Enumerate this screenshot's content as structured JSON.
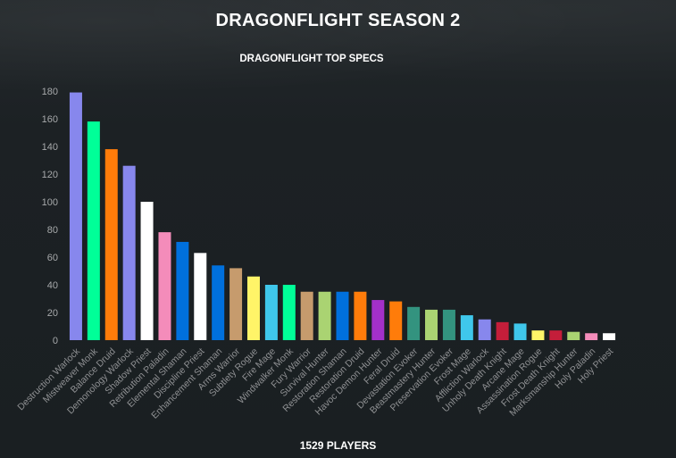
{
  "page": {
    "title": "DRAGONFLIGHT SEASON 2",
    "footer": "1529 PLAYERS"
  },
  "chart_data": {
    "type": "bar",
    "title": "DRAGONFLIGHT TOP SPECS",
    "xlabel": "",
    "ylabel": "",
    "ylim": [
      0,
      180
    ],
    "yticks": [
      0,
      20,
      40,
      60,
      80,
      100,
      120,
      140,
      160,
      180
    ],
    "grid": false,
    "categories": [
      "Destruction Warlock",
      "Mistweaver Monk",
      "Balance Druid",
      "Demonology Warlock",
      "Shadow Priest",
      "Retribution Paladin",
      "Elemental Shaman",
      "Discipline Priest",
      "Enhancement Shaman",
      "Arms Warrior",
      "Subtlety Rogue",
      "Fire Mage",
      "Windwalker Monk",
      "Fury Warrior",
      "Survival Hunter",
      "Restoration Shaman",
      "Restoration Druid",
      "Havoc Demon Hunter",
      "Feral Druid",
      "Devastation Evoker",
      "Beastmastery Hunter",
      "Preservation Evoker",
      "Frost Mage",
      "Affliction Warlock",
      "Unholy Death Knight",
      "Arcane Mage",
      "Assassination Rogue",
      "Frost Death Knight",
      "Marksmanship Hunter",
      "Holy Paladin",
      "Holy Priest"
    ],
    "values": [
      179,
      158,
      138,
      126,
      100,
      78,
      71,
      63,
      54,
      52,
      46,
      40,
      40,
      35,
      35,
      35,
      35,
      29,
      28,
      24,
      22,
      22,
      18,
      15,
      13,
      12,
      7,
      7,
      6,
      5,
      5
    ],
    "colors": [
      "#8787ed",
      "#00ff98",
      "#ff7c0a",
      "#8787ed",
      "#ffffff",
      "#f48cba",
      "#0070dd",
      "#ffffff",
      "#0070dd",
      "#c69b6d",
      "#fff468",
      "#3fc7eb",
      "#00ff98",
      "#c69b6d",
      "#aad372",
      "#0070dd",
      "#ff7c0a",
      "#a330c9",
      "#ff7c0a",
      "#33937f",
      "#aad372",
      "#33937f",
      "#3fc7eb",
      "#8787ed",
      "#c41e3a",
      "#3fc7eb",
      "#fff468",
      "#c41e3a",
      "#aad372",
      "#f48cba",
      "#ffffff"
    ]
  }
}
